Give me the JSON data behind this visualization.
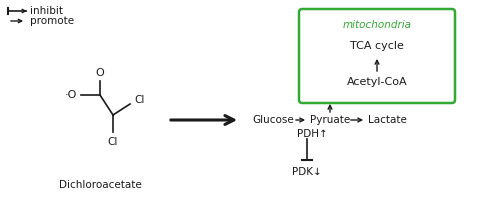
{
  "legend_inhibit": "inhibit",
  "legend_promote": "promote",
  "molecule_label": "Dichloroacetate",
  "mito_label": "mitochondria",
  "tca_label": "TCA cycle",
  "acetyl_label": "Acetyl-CoA",
  "glucose_label": "Glucose",
  "pyruate_label": "Pyruate",
  "lactate_label": "Lactate",
  "pdh_label": "PDH↑",
  "pdk_label": "PDK↓",
  "green_color": "#33aa33",
  "black_color": "#1a1a1a",
  "bg_color": "#ffffff",
  "fontsize": 7.5,
  "fontsize_mito": 7.5
}
